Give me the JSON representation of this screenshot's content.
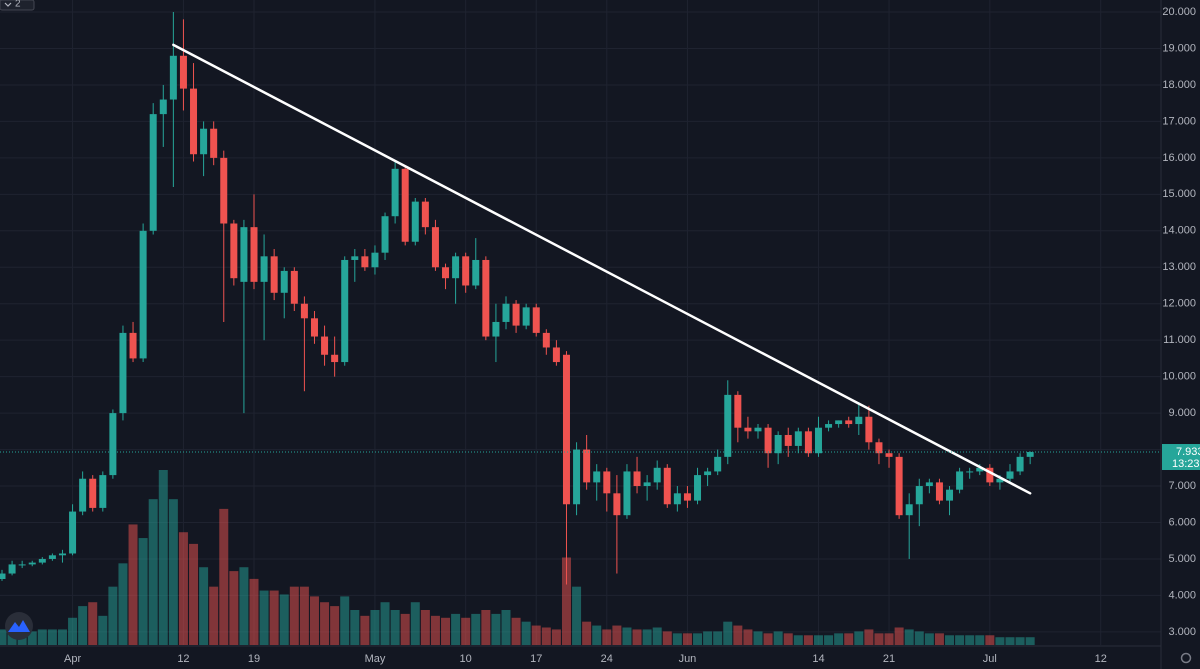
{
  "toolbar": {
    "label": "2"
  },
  "chart_data": {
    "type": "candlestick",
    "categories": [
      null,
      null,
      null,
      null,
      null,
      null,
      null,
      "Apr",
      null,
      null,
      null,
      null,
      null,
      null,
      null,
      null,
      null,
      null,
      "12",
      null,
      null,
      null,
      null,
      null,
      null,
      "19",
      null,
      null,
      null,
      null,
      null,
      null,
      null,
      null,
      null,
      null,
      null,
      "May",
      null,
      null,
      null,
      null,
      null,
      null,
      null,
      null,
      "10",
      null,
      null,
      null,
      null,
      null,
      null,
      "17",
      null,
      null,
      null,
      null,
      null,
      null,
      "24",
      null,
      null,
      null,
      null,
      null,
      null,
      null,
      "Jun",
      null,
      null,
      null,
      null,
      null,
      null,
      null,
      null,
      null,
      null,
      null,
      null,
      "14",
      null,
      null,
      null,
      null,
      null,
      null,
      "21",
      null,
      null,
      null,
      null,
      null,
      null,
      null,
      null,
      null,
      "Jul",
      null,
      null,
      null,
      null,
      null,
      null,
      null,
      null,
      null,
      null,
      "12"
    ],
    "open": [
      4.45,
      4.6,
      4.85,
      4.85,
      4.9,
      5.0,
      5.1,
      5.15,
      6.3,
      7.2,
      6.4,
      7.3,
      9.0,
      11.2,
      10.5,
      14.0,
      17.2,
      17.6,
      18.8,
      17.9,
      16.1,
      16.8,
      16.0,
      14.2,
      12.6,
      14.1,
      12.6,
      13.3,
      12.3,
      12.9,
      12.0,
      11.6,
      11.1,
      10.6,
      10.4,
      13.2,
      13.3,
      13.0,
      13.4,
      14.4,
      15.7,
      13.7,
      14.8,
      14.1,
      13.0,
      12.7,
      13.3,
      12.5,
      13.2,
      11.1,
      11.5,
      12.0,
      11.4,
      11.9,
      11.2,
      10.8,
      10.6,
      6.5,
      8.0,
      7.1,
      7.4,
      6.8,
      6.2,
      7.4,
      7.0,
      7.1,
      7.5,
      6.5,
      6.8,
      6.6,
      7.3,
      7.4,
      7.8,
      9.5,
      8.6,
      8.5,
      8.6,
      7.9,
      8.4,
      8.1,
      8.5,
      7.9,
      8.6,
      8.7,
      8.8,
      8.7,
      8.9,
      8.2,
      7.9,
      7.8,
      6.2,
      6.5,
      7.0,
      7.1,
      6.6,
      6.9,
      7.4,
      7.4,
      7.5,
      7.1,
      7.2,
      7.4,
      7.8,
      null,
      null,
      null,
      null,
      null,
      null,
      null
    ],
    "high": [
      4.7,
      4.95,
      4.95,
      4.95,
      5.05,
      5.15,
      5.25,
      6.5,
      7.4,
      7.3,
      7.4,
      9.1,
      11.4,
      11.5,
      14.2,
      17.5,
      18.0,
      20.0,
      19.8,
      18.6,
      17.0,
      17.0,
      16.2,
      14.3,
      14.3,
      15.0,
      13.9,
      13.5,
      13.0,
      13.0,
      12.2,
      11.8,
      11.4,
      11.1,
      13.3,
      13.5,
      13.5,
      13.6,
      14.5,
      15.9,
      15.8,
      14.9,
      14.9,
      14.3,
      13.1,
      13.4,
      13.4,
      13.8,
      13.3,
      12.0,
      12.2,
      12.1,
      12.0,
      12.0,
      11.3,
      11.0,
      10.7,
      8.2,
      8.4,
      7.6,
      7.5,
      7.3,
      7.6,
      7.8,
      7.3,
      7.7,
      7.6,
      7.0,
      7.0,
      7.5,
      7.5,
      8.0,
      9.9,
      9.6,
      8.9,
      8.7,
      8.7,
      8.5,
      8.6,
      8.6,
      8.6,
      8.9,
      8.8,
      8.8,
      8.9,
      9.3,
      9.2,
      8.3,
      8.0,
      7.9,
      6.8,
      7.2,
      7.2,
      7.2,
      7.0,
      7.5,
      7.5,
      7.6,
      7.6,
      7.3,
      7.6,
      7.9,
      7.95,
      null,
      null,
      null,
      null,
      null,
      null,
      null
    ],
    "low": [
      4.4,
      4.55,
      4.75,
      4.8,
      4.85,
      4.95,
      4.9,
      5.1,
      6.2,
      6.3,
      6.3,
      7.2,
      8.8,
      10.4,
      10.4,
      13.9,
      16.3,
      15.2,
      17.3,
      15.9,
      15.5,
      15.8,
      11.5,
      12.5,
      9.0,
      12.4,
      11.0,
      12.1,
      11.6,
      11.8,
      9.6,
      10.9,
      10.3,
      10.0,
      10.3,
      12.6,
      12.9,
      12.8,
      13.2,
      14.2,
      13.6,
      13.6,
      13.9,
      12.9,
      12.4,
      12.0,
      12.3,
      12.4,
      11.0,
      10.4,
      11.3,
      11.2,
      11.3,
      11.1,
      10.6,
      10.3,
      4.3,
      6.2,
      6.9,
      6.6,
      6.3,
      4.6,
      6.1,
      6.8,
      6.6,
      6.9,
      6.4,
      6.3,
      6.4,
      6.5,
      7.0,
      7.3,
      7.6,
      8.2,
      8.3,
      8.3,
      7.5,
      7.6,
      7.8,
      7.9,
      7.8,
      7.8,
      8.5,
      8.6,
      8.6,
      8.4,
      8.0,
      7.6,
      7.5,
      6.1,
      5.0,
      5.9,
      6.8,
      6.5,
      6.2,
      6.8,
      7.2,
      7.3,
      7.0,
      6.9,
      7.1,
      7.3,
      7.6,
      null,
      null,
      null,
      null,
      null,
      null,
      null
    ],
    "close": [
      4.6,
      4.85,
      4.85,
      4.9,
      5.0,
      5.1,
      5.15,
      6.3,
      7.2,
      6.4,
      7.3,
      9.0,
      11.2,
      10.5,
      14.0,
      17.2,
      17.6,
      18.8,
      17.9,
      16.1,
      16.8,
      16.0,
      14.2,
      12.7,
      14.1,
      12.6,
      13.3,
      12.3,
      12.9,
      12.0,
      11.6,
      11.1,
      10.6,
      10.4,
      13.2,
      13.3,
      13.0,
      13.4,
      14.4,
      15.7,
      13.7,
      14.8,
      14.1,
      13.0,
      12.7,
      13.3,
      12.5,
      13.2,
      11.1,
      11.5,
      12.0,
      11.4,
      11.9,
      11.2,
      10.8,
      10.4,
      6.5,
      8.0,
      7.1,
      7.4,
      6.8,
      6.2,
      7.4,
      7.0,
      7.1,
      7.5,
      6.5,
      6.8,
      6.6,
      7.3,
      7.4,
      7.8,
      9.5,
      8.6,
      8.5,
      8.6,
      7.9,
      8.4,
      8.1,
      8.5,
      7.9,
      8.6,
      8.7,
      8.8,
      8.7,
      8.9,
      8.2,
      7.9,
      7.8,
      6.2,
      6.5,
      7.0,
      7.1,
      6.6,
      6.9,
      7.4,
      7.4,
      7.5,
      7.1,
      7.2,
      7.4,
      7.8,
      7.933,
      null,
      null,
      null,
      null,
      null,
      null,
      null
    ],
    "volume": [
      8,
      8,
      7,
      7,
      8,
      8,
      8,
      14,
      20,
      22,
      15,
      30,
      42,
      62,
      55,
      75,
      90,
      75,
      58,
      52,
      40,
      30,
      70,
      38,
      40,
      34,
      28,
      28,
      26,
      30,
      30,
      25,
      22,
      20,
      25,
      18,
      15,
      18,
      22,
      18,
      16,
      22,
      18,
      15,
      14,
      16,
      14,
      16,
      18,
      16,
      18,
      14,
      12,
      10,
      9,
      8,
      45,
      30,
      12,
      10,
      8,
      10,
      9,
      8,
      8,
      9,
      7,
      6,
      6,
      6,
      7,
      7,
      12,
      10,
      8,
      7,
      6,
      7,
      6,
      5,
      5,
      5,
      5,
      6,
      6,
      7,
      8,
      6,
      6,
      9,
      8,
      7,
      6,
      6,
      5,
      5,
      5,
      5,
      5,
      4,
      4,
      4,
      4,
      null,
      null,
      null,
      null,
      null,
      null,
      null
    ],
    "up_color": "#26a69a",
    "down_color": "#ef5350",
    "ylim": [
      2.64,
      20.33
    ],
    "yticks": [
      {
        "value": 3,
        "label": "3.000"
      },
      {
        "value": 4,
        "label": "4.000"
      },
      {
        "value": 5,
        "label": "5.000"
      },
      {
        "value": 6,
        "label": "6.000"
      },
      {
        "value": 7,
        "label": "7.000"
      },
      {
        "value": 8,
        "label": "8.000"
      },
      {
        "value": 9,
        "label": "9.000"
      },
      {
        "value": 10,
        "label": "10.000"
      },
      {
        "value": 11,
        "label": "11.000"
      },
      {
        "value": 12,
        "label": "12.000"
      },
      {
        "value": 13,
        "label": "13.000"
      },
      {
        "value": 14,
        "label": "14.000"
      },
      {
        "value": 15,
        "label": "15.000"
      },
      {
        "value": 16,
        "label": "16.000"
      },
      {
        "value": 17,
        "label": "17.000"
      },
      {
        "value": 18,
        "label": "18.000"
      },
      {
        "value": 19,
        "label": "19.000"
      },
      {
        "value": 20,
        "label": "20.000"
      }
    ],
    "grid": true,
    "last_price": 7.933,
    "countdown": "13:23:",
    "trendline": {
      "from": 17,
      "to": 102,
      "values": [
        19.1,
        6.8
      ],
      "color": "#ffffff"
    }
  }
}
